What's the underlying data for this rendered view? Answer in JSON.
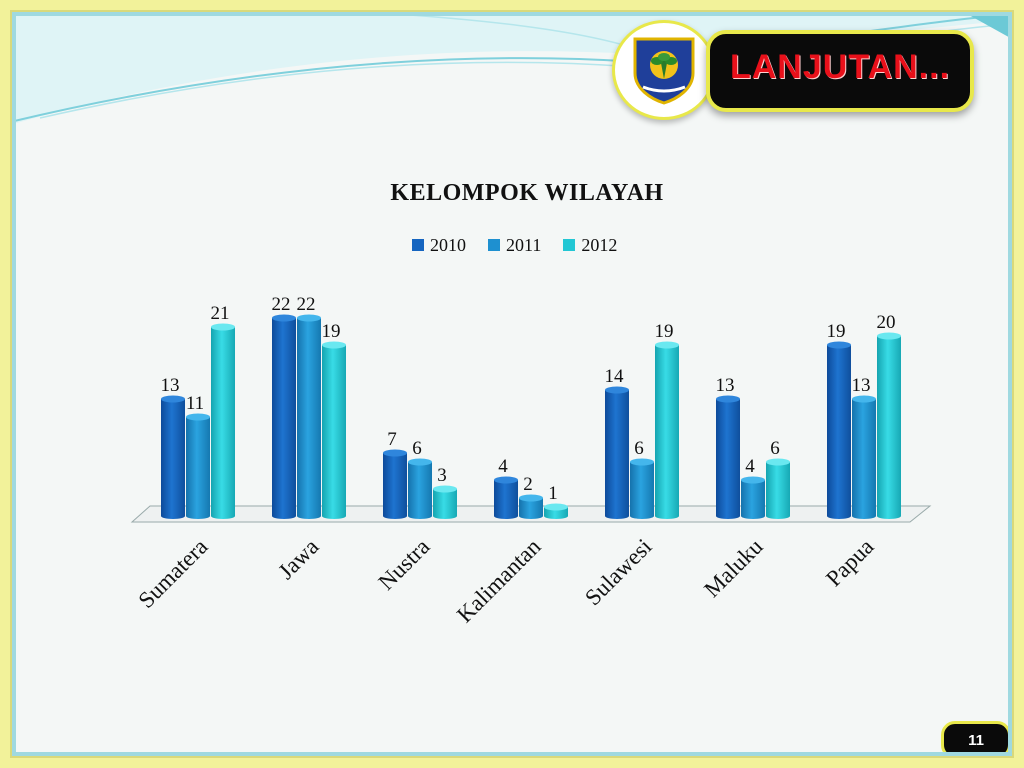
{
  "header": {
    "banner_label": "LANJUTAN...",
    "logo_icon": "emblem-shield-icon"
  },
  "page_number": "11",
  "colors": {
    "series_2010": "#1565c0",
    "series_2011": "#1e90d0",
    "series_2012": "#22c7d4",
    "frame": "#f2f29a",
    "banner_bg": "#0a0a0a",
    "banner_text": "#e8101a"
  },
  "chart_data": {
    "type": "bar",
    "title": "KELOMPOK WILAYAH",
    "categories": [
      "Sumatera",
      "Jawa",
      "Nustra",
      "Kalimantan",
      "Sulawesi",
      "Maluku",
      "Papua"
    ],
    "series": [
      {
        "name": "2010",
        "values": [
          13,
          22,
          7,
          4,
          14,
          13,
          19
        ]
      },
      {
        "name": "2011",
        "values": [
          11,
          22,
          6,
          2,
          6,
          4,
          13
        ]
      },
      {
        "name": "2012",
        "values": [
          21,
          19,
          3,
          1,
          19,
          6,
          20
        ]
      }
    ],
    "ylim": [
      0,
      22
    ],
    "grid": false,
    "legend": "top"
  }
}
